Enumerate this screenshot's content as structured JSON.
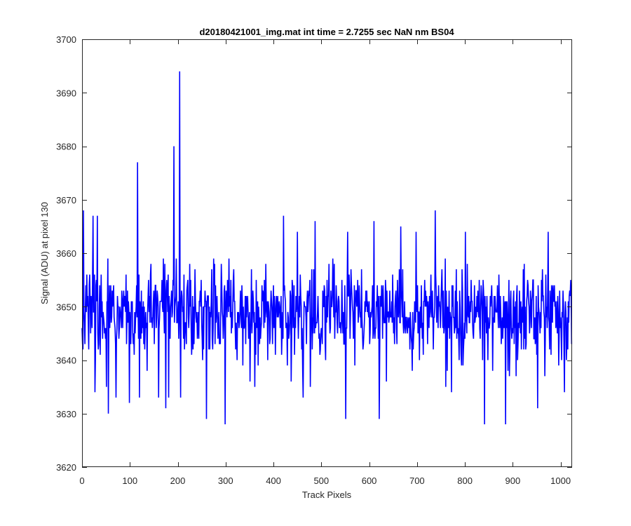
{
  "chart_data": {
    "type": "line",
    "title": "d20180421001_img.mat int time = 2.7255 sec  NaN nm BS04",
    "xlabel": "Track Pixels",
    "ylabel": "Signal (ADU) at pixel 130",
    "xlim": [
      0,
      1024
    ],
    "ylim": [
      3620,
      3700
    ],
    "xticks": [
      0,
      100,
      200,
      300,
      400,
      500,
      600,
      700,
      800,
      900,
      1000
    ],
    "yticks": [
      3620,
      3630,
      3640,
      3650,
      3660,
      3670,
      3680,
      3690,
      3700
    ],
    "grid": false,
    "legend": "none",
    "series": [
      {
        "color": "#0000ff",
        "n_points": 1024,
        "baseline": 3649,
        "noise_low": 3637,
        "noise_high": 3661,
        "x": [
          0,
          3,
          14,
          23,
          27,
          32,
          51,
          55,
          71,
          99,
          116,
          120,
          136,
          160,
          175,
          181,
          192,
          204,
          206,
          260,
          299,
          351,
          361,
          421,
          437,
          450,
          462,
          477,
          487,
          551,
          555,
          610,
          621,
          666,
          690,
          698,
          738,
          760,
          772,
          801,
          841,
          858,
          885,
          893,
          952,
          967,
          974,
          1008,
          1015,
          1021
        ],
        "y": [
          3646,
          3668,
          3642,
          3667,
          3634,
          3667,
          3635,
          3630,
          3633,
          3632,
          3677,
          3633,
          3638,
          3633,
          3631,
          3633,
          3680,
          3694,
          3633,
          3629,
          3628,
          3636,
          3635,
          3667,
          3636,
          3664,
          3633,
          3635,
          3666,
          3629,
          3664,
          3666,
          3629,
          3665,
          3638,
          3664,
          3668,
          3635,
          3634,
          3664,
          3628,
          3638,
          3628,
          3637,
          3631,
          3637,
          3664,
          3634,
          3642,
          3655
        ]
      }
    ]
  }
}
